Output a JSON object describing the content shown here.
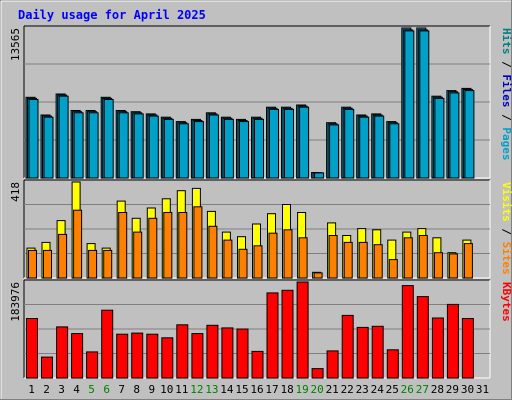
{
  "chart_data": {
    "type": "bar",
    "title": "Daily usage for April 2025",
    "categories": [
      "1",
      "2",
      "3",
      "4",
      "5",
      "6",
      "7",
      "8",
      "9",
      "10",
      "11",
      "12",
      "13",
      "14",
      "15",
      "16",
      "17",
      "18",
      "19",
      "20",
      "21",
      "22",
      "23",
      "24",
      "25",
      "26",
      "27",
      "28",
      "29",
      "30",
      "31"
    ],
    "weekend_days": [
      5,
      6,
      12,
      13,
      19,
      20,
      26,
      27
    ],
    "panels": [
      {
        "id": "hits",
        "ymax_label": "13565",
        "ymax": 13565,
        "legend": [
          {
            "label": "Pages",
            "color": "#00a0c8"
          },
          {
            "label": "Files",
            "color": "#0000c0"
          },
          {
            "label": "Hits",
            "color": "#008080"
          }
        ],
        "series": [
          {
            "name": "Hits",
            "color": "#00a0c8",
            "values": [
              7300,
              5700,
              7600,
              6100,
              6100,
              7300,
              6100,
              6000,
              5800,
              5500,
              5100,
              5300,
              5900,
              5500,
              5300,
              5500,
              6400,
              6400,
              6600,
              500,
              5000,
              6400,
              5700,
              5800,
              5100,
              13565,
              13565,
              7400,
              7900,
              8100,
              null
            ]
          },
          {
            "name": "Files",
            "color": "#00a0c8",
            "values": [
              7200,
              5600,
              7500,
              6000,
              6000,
              7200,
              6000,
              5900,
              5700,
              5400,
              5000,
              5200,
              5800,
              5400,
              5200,
              5400,
              6300,
              6300,
              6500,
              480,
              4900,
              6300,
              5600,
              5700,
              5000,
              13400,
              13400,
              7300,
              7800,
              8000,
              null
            ]
          },
          {
            "name": "Pages",
            "color": "#00a0c8",
            "values": [
              7100,
              5500,
              7400,
              5900,
              5900,
              7100,
              5900,
              5800,
              5600,
              5300,
              4900,
              5100,
              5700,
              5300,
              5100,
              5300,
              6200,
              6200,
              6400,
              460,
              4800,
              6200,
              5500,
              5600,
              4900,
              13300,
              13300,
              7200,
              7700,
              7900,
              null
            ]
          }
        ]
      },
      {
        "id": "visits",
        "ymax_label": "418",
        "ymax": 418,
        "legend": [
          {
            "label": "Sites",
            "color": "#ff8000"
          },
          {
            "label": "Visits",
            "color": "#ffff00"
          }
        ],
        "series": [
          {
            "name": "Visits",
            "color": "#ffff00",
            "values": [
              130,
              155,
              250,
              418,
              150,
              130,
              335,
              260,
              305,
              345,
              380,
              390,
              290,
              200,
              180,
              235,
              280,
              320,
              285,
              25,
              240,
              185,
              215,
              210,
              165,
              200,
              215,
              175,
              110,
              165,
              null
            ]
          },
          {
            "name": "Sites",
            "color": "#ff8000",
            "values": [
              120,
              120,
              190,
              295,
              120,
              120,
              285,
              200,
              260,
              285,
              285,
              310,
              225,
              165,
              125,
              140,
              195,
              210,
              175,
              22,
              185,
              155,
              155,
              145,
              80,
              175,
              185,
              110,
              105,
              150,
              null
            ]
          }
        ]
      },
      {
        "id": "kbytes",
        "ymax_label": "183976",
        "ymax": 183976,
        "legend": [
          {
            "label": "KBytes",
            "color": "#ff0000"
          }
        ],
        "series": [
          {
            "name": "KBytes",
            "color": "#ff0000",
            "values": [
              114000,
              40000,
              98000,
              85000,
              50000,
              130000,
              84000,
              86000,
              84000,
              77000,
              102000,
              85000,
              101000,
              96000,
              94000,
              51000,
              163000,
              168000,
              183976,
              18000,
              52000,
              120000,
              97000,
              99000,
              54000,
              177000,
              156000,
              115000,
              141000,
              114000,
              null
            ]
          }
        ]
      }
    ]
  }
}
